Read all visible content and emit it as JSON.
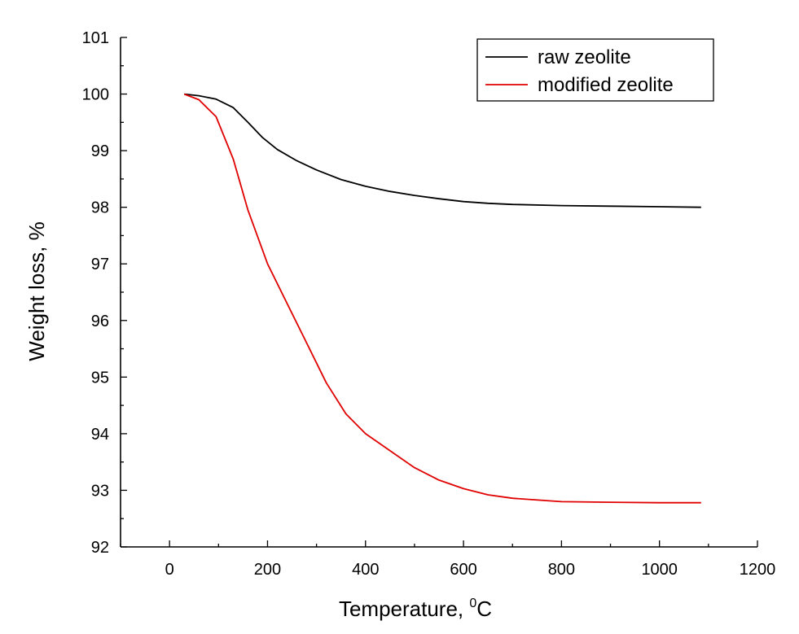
{
  "chart_data": {
    "type": "line",
    "xlabel": "Temperature, ",
    "xlabel_unit_sup": "0",
    "xlabel_unit": "C",
    "ylabel": "Weight loss, %",
    "xlim": [
      -100,
      1200
    ],
    "ylim": [
      92,
      101
    ],
    "xticks": [
      0,
      200,
      400,
      600,
      800,
      1000,
      1200
    ],
    "yticks": [
      92,
      93,
      94,
      95,
      96,
      97,
      98,
      99,
      100,
      101
    ],
    "grid": false,
    "legend_position": "top-right",
    "series": [
      {
        "name": "raw zeolite",
        "color": "#000000",
        "x": [
          30,
          60,
          95,
          130,
          160,
          190,
          220,
          260,
          300,
          350,
          400,
          450,
          500,
          550,
          600,
          650,
          700,
          800,
          900,
          1000,
          1085
        ],
        "y": [
          100.0,
          99.97,
          99.91,
          99.76,
          99.5,
          99.23,
          99.02,
          98.82,
          98.66,
          98.49,
          98.37,
          98.28,
          98.21,
          98.15,
          98.1,
          98.07,
          98.05,
          98.03,
          98.02,
          98.01,
          98.0
        ]
      },
      {
        "name": "modified zeolite",
        "color": "#e00000",
        "x": [
          30,
          60,
          95,
          130,
          160,
          200,
          240,
          280,
          320,
          360,
          400,
          450,
          500,
          550,
          600,
          650,
          700,
          800,
          900,
          1000,
          1085
        ],
        "y": [
          100.0,
          99.9,
          99.6,
          98.85,
          97.95,
          97.0,
          96.3,
          95.6,
          94.9,
          94.35,
          94.0,
          93.7,
          93.4,
          93.18,
          93.03,
          92.92,
          92.86,
          92.8,
          92.79,
          92.78,
          92.78
        ]
      }
    ]
  }
}
